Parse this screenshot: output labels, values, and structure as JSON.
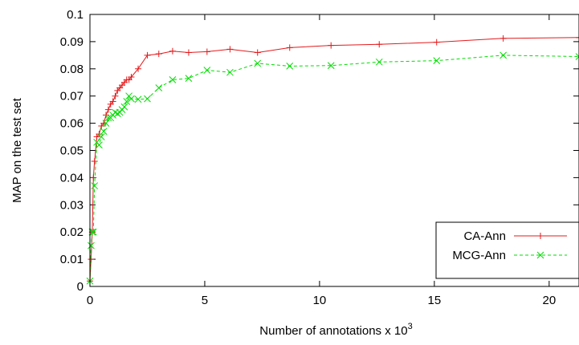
{
  "chart_data": {
    "type": "line",
    "title": "",
    "xlabel": "Number of annotations x 10",
    "xlabel_sup": "3",
    "ylabel": "MAP on the test set",
    "xlim": [
      0,
      21.3
    ],
    "ylim": [
      0,
      0.1
    ],
    "xticks": [
      0,
      5,
      10,
      15,
      20
    ],
    "xtick_labels": [
      "0",
      "5",
      "10",
      "15",
      "20"
    ],
    "yticks": [
      0,
      0.01,
      0.02,
      0.03,
      0.04,
      0.05,
      0.06,
      0.07,
      0.08,
      0.09,
      0.1
    ],
    "ytick_labels": [
      "0",
      "0.01",
      "0.02",
      "0.03",
      "0.04",
      "0.05",
      "0.06",
      "0.07",
      "0.08",
      "0.09",
      "0.1"
    ],
    "grid": false,
    "legend_position": "bottom-right",
    "series": [
      {
        "name": "CA-Ann",
        "color": "#e31a1c",
        "line_style": "solid",
        "marker": "plus",
        "x": [
          0,
          0.05,
          0.1,
          0.15,
          0.2,
          0.3,
          0.4,
          0.5,
          0.6,
          0.7,
          0.8,
          0.9,
          1.0,
          1.1,
          1.2,
          1.3,
          1.4,
          1.5,
          1.6,
          1.7,
          1.8,
          2.1,
          2.5,
          3.0,
          3.6,
          4.3,
          5.1,
          6.1,
          7.3,
          8.7,
          10.5,
          12.6,
          15.1,
          18.0,
          21.3
        ],
        "y": [
          0.002,
          0.01,
          0.02,
          0.04,
          0.046,
          0.055,
          0.056,
          0.059,
          0.06,
          0.063,
          0.065,
          0.067,
          0.068,
          0.07,
          0.072,
          0.073,
          0.074,
          0.075,
          0.076,
          0.076,
          0.077,
          0.08,
          0.085,
          0.0855,
          0.0865,
          0.086,
          0.0863,
          0.0872,
          0.086,
          0.0878,
          0.0886,
          0.089,
          0.0898,
          0.0912,
          0.0915
        ]
      },
      {
        "name": "MCG-Ann",
        "color": "#00dd00",
        "line_style": "dashed",
        "marker": "cross",
        "x": [
          0,
          0.05,
          0.1,
          0.15,
          0.2,
          0.3,
          0.4,
          0.5,
          0.6,
          0.7,
          0.8,
          0.9,
          1.0,
          1.1,
          1.2,
          1.3,
          1.4,
          1.5,
          1.6,
          1.7,
          1.8,
          2.1,
          2.5,
          3.0,
          3.6,
          4.3,
          5.1,
          6.1,
          7.3,
          8.7,
          10.5,
          12.6,
          15.1,
          18.0,
          21.3
        ],
        "y": [
          0.002,
          0.015,
          0.02,
          0.02,
          0.037,
          0.053,
          0.052,
          0.055,
          0.057,
          0.06,
          0.062,
          0.062,
          0.063,
          0.064,
          0.0635,
          0.064,
          0.065,
          0.066,
          0.068,
          0.07,
          0.069,
          0.0688,
          0.069,
          0.073,
          0.076,
          0.0765,
          0.0795,
          0.0787,
          0.082,
          0.081,
          0.0812,
          0.0825,
          0.083,
          0.085,
          0.0845
        ]
      }
    ]
  }
}
